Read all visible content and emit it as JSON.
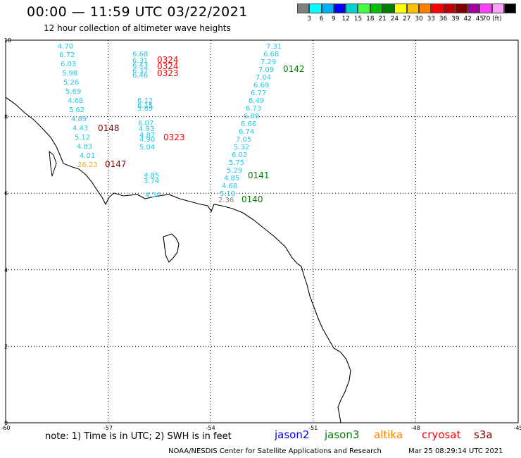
{
  "header": {
    "title": "00:00 — 11:59 UTC 03/22/2021",
    "subtitle": "12 hour collection of altimeter wave heights"
  },
  "legend": {
    "colors": [
      "#808080",
      "#00ffff",
      "#00b0ff",
      "#0000ff",
      "#00d0d0",
      "#40ff40",
      "#00c000",
      "#008000",
      "#ffff00",
      "#ffc000",
      "#ff8000",
      "#ff0000",
      "#c00000",
      "#800000",
      "#a000a0",
      "#ff40ff",
      "#ffa0ff",
      "#000000"
    ],
    "labels": [
      "3",
      "6",
      "9",
      "12",
      "15",
      "18",
      "21",
      "24",
      "27",
      "30",
      "33",
      "36",
      "39",
      "42",
      "45",
      "70 (ft)"
    ]
  },
  "axes": {
    "x_ticks": [
      "-60",
      "-57",
      "-54",
      "-51",
      "-48",
      "-45"
    ],
    "y_ticks": [
      "10",
      "8",
      "6",
      "4",
      "2",
      "0"
    ]
  },
  "tracks": {
    "west": {
      "values": [
        "4.70",
        "6.72",
        "6.03",
        "5.98",
        "5.26",
        "5.69",
        "4.68",
        "5.62",
        "4.89",
        "4.43",
        "5.12",
        "4.83",
        "4.01",
        "26.23"
      ],
      "label": "0148",
      "label2": "0147"
    },
    "mid": {
      "values": [
        "6.68",
        "6.31",
        "6.43",
        "6.37",
        "6.46",
        "6.12",
        "6.15",
        "5.89",
        "6.07",
        "4.93",
        "4.87",
        "4.90",
        "5.04",
        "4.85",
        "3.74",
        "4.30"
      ],
      "labels": [
        "0324",
        "0324",
        "0323",
        "0323"
      ]
    },
    "east": {
      "values": [
        "7.31",
        "6.68",
        "7.29",
        "7.09",
        "7.04",
        "6.69",
        "6.77",
        "6.49",
        "6.73",
        "6.89",
        "6.66",
        "6.74",
        "7.05",
        "5.32",
        "6.02",
        "5.75",
        "5.29",
        "4.85",
        "4.68",
        "5.10",
        "2.36"
      ],
      "labels": [
        "0142",
        "0141",
        "0140"
      ]
    }
  },
  "footer": {
    "note": "note: 1) Time is in UTC; 2) SWH is in feet",
    "satellites": [
      "jason2",
      "jason3",
      "altika",
      "cryosat",
      "s3a"
    ],
    "satellite_colors": [
      "#0000ff",
      "#008000",
      "#ff8000",
      "#ff0000",
      "#800000"
    ],
    "credit": "NOAA/NESDIS Center for Satellite Applications and Research",
    "timestamp": "Mar 25 08:29:14 UTC 2021"
  }
}
